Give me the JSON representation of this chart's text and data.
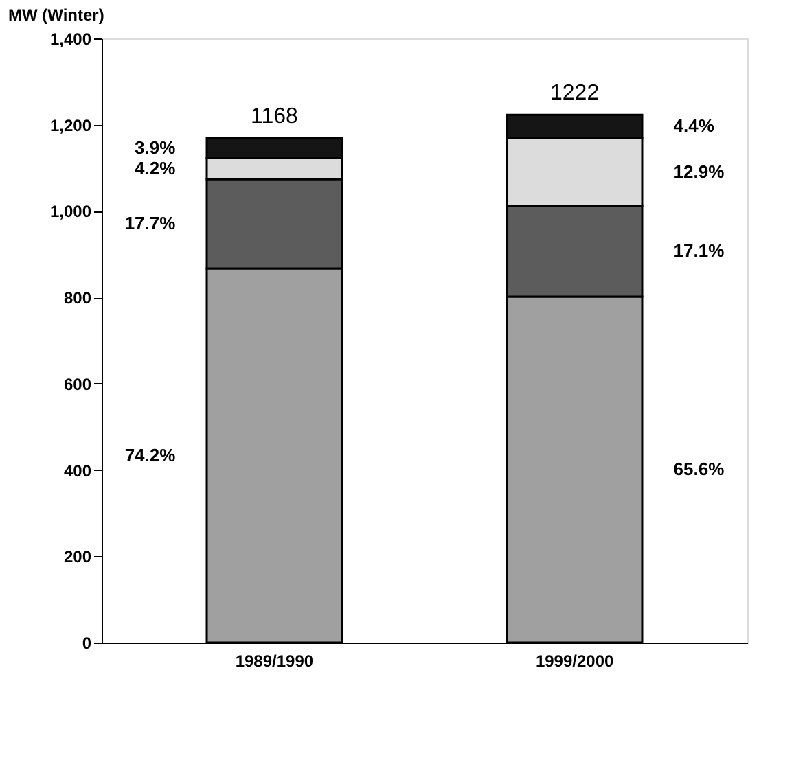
{
  "chart_data": {
    "type": "bar",
    "stacked": true,
    "ylabel": "MW (Winter)",
    "categories": [
      "1989/1990",
      "1999/2000"
    ],
    "series": [
      {
        "color": "#a0a0a0",
        "values": [
          867,
          802
        ]
      },
      {
        "color": "#5c5c5c",
        "values": [
          207,
          209
        ]
      },
      {
        "color": "#dcdcdc",
        "values": [
          49,
          158
        ]
      },
      {
        "color": "#151515",
        "values": [
          46,
          54
        ]
      }
    ],
    "totals": [
      "1168",
      "1222"
    ],
    "annotations": [
      "74.2%",
      "17.7%",
      "4.2%",
      "3.9%",
      "65.6%",
      "17.1%",
      "12.9%",
      "4.4%"
    ],
    "ylim": [
      0,
      1400
    ],
    "yticks": [
      0,
      200,
      400,
      600,
      800,
      {
        "value": 1000,
        "label": "1,000"
      },
      {
        "value": 1200,
        "label": "1,200"
      },
      {
        "value": 1400,
        "label": "1,400"
      }
    ],
    "grid": false
  }
}
